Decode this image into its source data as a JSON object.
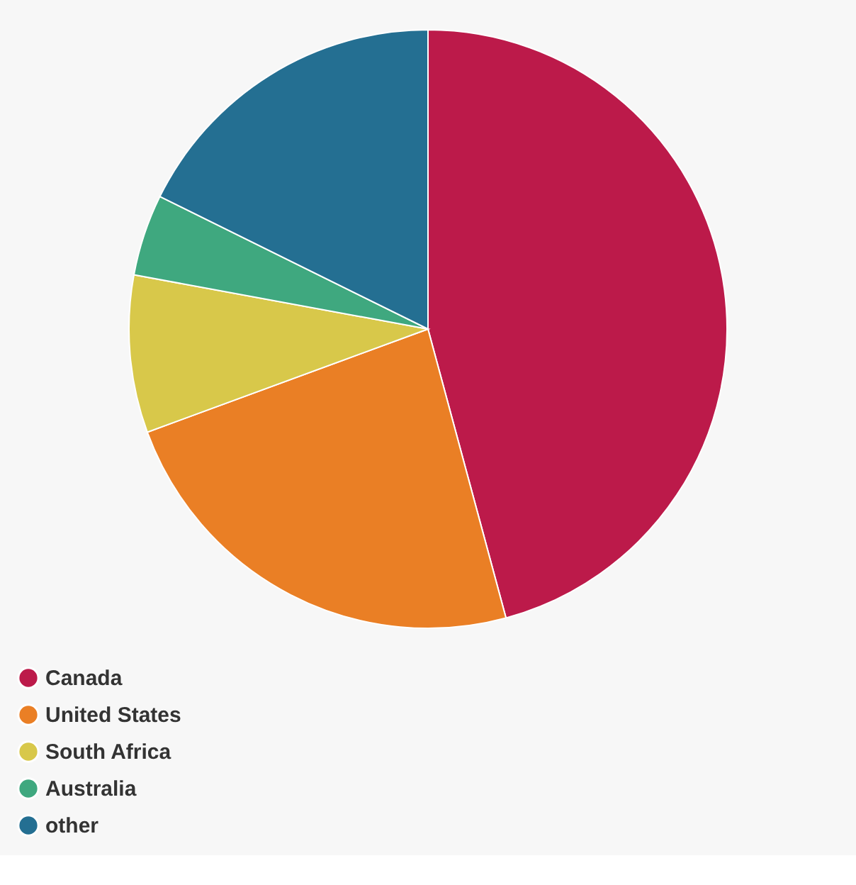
{
  "chart_data": {
    "type": "pie",
    "categories": [
      "Canada",
      "United States",
      "South Africa",
      "Australia",
      "other"
    ],
    "values": [
      45.8,
      23.6,
      8.5,
      4.4,
      17.7
    ],
    "colors": [
      "#bc1a4a",
      "#ea7f25",
      "#d8c84a",
      "#3fa87f",
      "#246f92"
    ],
    "legend": "bottom"
  }
}
